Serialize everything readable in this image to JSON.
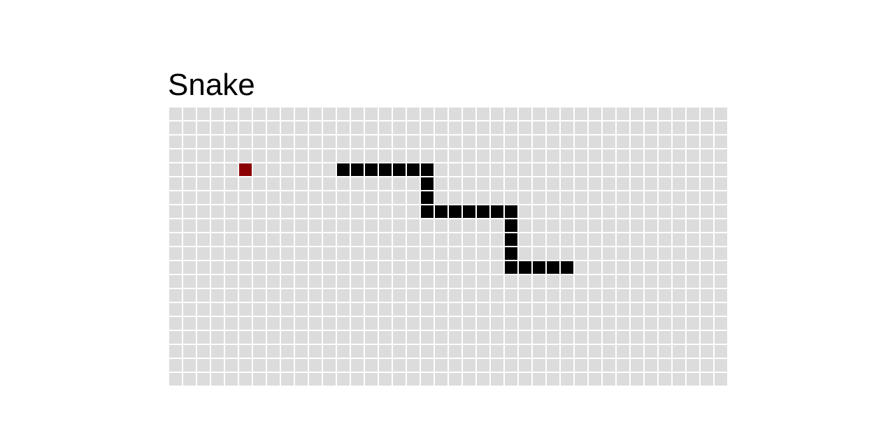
{
  "title": "Snake",
  "board": {
    "columns": 40,
    "rows": 20,
    "colors": {
      "empty": "#dcdcdc",
      "grid_line": "#ffffff",
      "snake": "#000000",
      "food": "#8b0000"
    },
    "food": {
      "col": 5,
      "row": 4
    },
    "snake": [
      {
        "col": 12,
        "row": 4
      },
      {
        "col": 13,
        "row": 4
      },
      {
        "col": 14,
        "row": 4
      },
      {
        "col": 15,
        "row": 4
      },
      {
        "col": 16,
        "row": 4
      },
      {
        "col": 17,
        "row": 4
      },
      {
        "col": 18,
        "row": 4
      },
      {
        "col": 18,
        "row": 5
      },
      {
        "col": 18,
        "row": 6
      },
      {
        "col": 18,
        "row": 7
      },
      {
        "col": 19,
        "row": 7
      },
      {
        "col": 20,
        "row": 7
      },
      {
        "col": 21,
        "row": 7
      },
      {
        "col": 22,
        "row": 7
      },
      {
        "col": 23,
        "row": 7
      },
      {
        "col": 24,
        "row": 7
      },
      {
        "col": 24,
        "row": 8
      },
      {
        "col": 24,
        "row": 9
      },
      {
        "col": 24,
        "row": 10
      },
      {
        "col": 24,
        "row": 11
      },
      {
        "col": 25,
        "row": 11
      },
      {
        "col": 26,
        "row": 11
      },
      {
        "col": 27,
        "row": 11
      },
      {
        "col": 28,
        "row": 11
      }
    ]
  }
}
